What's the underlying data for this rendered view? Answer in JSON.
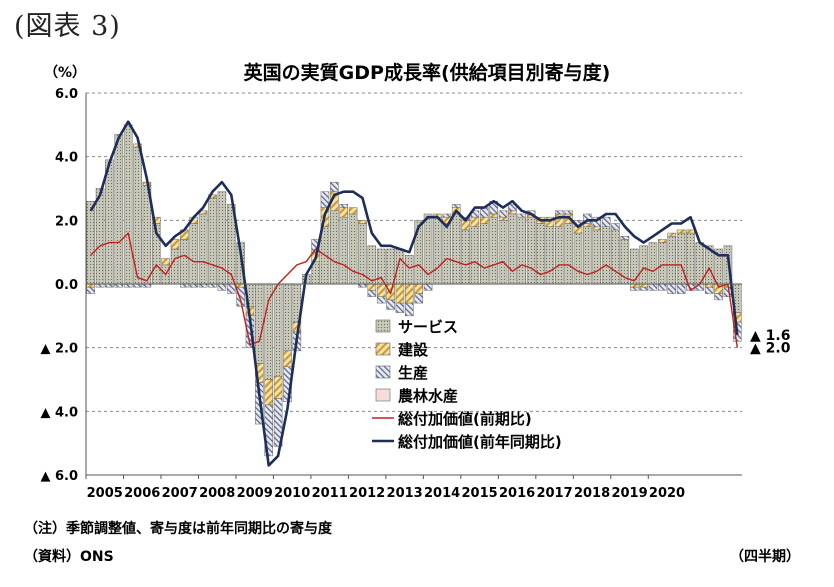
{
  "figure_label": "(図表 3)",
  "unit": "（%）",
  "note": "（注）季節調整値、寄与度は前年同期比の寄与度",
  "source": "（資料）ONS",
  "period": "（四半期）",
  "chart_data": {
    "type": "bar",
    "title": "英国の実質GDP成長率(供給項目別寄与度)",
    "ylim": [
      -6,
      6
    ],
    "y_ticks": [
      "6.0",
      "4.0",
      "2.0",
      "0.0",
      "▲ 2.0",
      "▲ 4.0",
      "▲ 6.0"
    ],
    "y_tick_values": [
      6,
      4,
      2,
      0,
      -2,
      -4,
      -6
    ],
    "x_year_labels": [
      "2005",
      "2006",
      "2007",
      "2008",
      "2009",
      "2010",
      "2011",
      "2012",
      "2013",
      "2014",
      "2015",
      "2016",
      "2017",
      "2018",
      "2019",
      "2020"
    ],
    "start_year": 2005,
    "quarters_per_year": 4,
    "grid": true,
    "colors": {
      "services": "#c8c8b8",
      "construction": "#e9c878",
      "production": "#b8c0d8",
      "agriculture": "#f4c8c8",
      "qoq": "#c0201e",
      "yoy": "#1e2d5a"
    },
    "series": [
      {
        "name": "サービス",
        "kind": "bar",
        "values": [
          2.6,
          3.0,
          3.9,
          4.7,
          5.0,
          4.3,
          3.1,
          1.9,
          0.6,
          1.1,
          1.4,
          1.9,
          2.2,
          2.7,
          2.9,
          2.5,
          1.3,
          -0.7,
          -2.5,
          -3.0,
          -2.9,
          -2.1,
          -1.2,
          0.3,
          0.7,
          1.8,
          2.3,
          2.1,
          2.2,
          1.9,
          1.2,
          1.1,
          1.1,
          1.1,
          0.9,
          2.0,
          2.2,
          2.1,
          1.9,
          2.2,
          1.7,
          1.8,
          1.9,
          2.1,
          2.0,
          2.2,
          2.1,
          2.1,
          1.9,
          1.8,
          1.8,
          1.9,
          1.6,
          1.8,
          1.7,
          1.8,
          1.7,
          1.4,
          1.1,
          1.2,
          1.3,
          1.3,
          1.5,
          1.6,
          1.6,
          1.3,
          1.2,
          1.1,
          1.2,
          -0.9
        ]
      },
      {
        "name": "建設",
        "kind": "bar",
        "values": [
          -0.1,
          0.0,
          0.0,
          0.0,
          0.0,
          0.1,
          0.1,
          0.2,
          0.2,
          0.3,
          0.3,
          0.2,
          0.1,
          0.1,
          0.0,
          0.0,
          -0.1,
          -0.3,
          -0.6,
          -0.8,
          -0.7,
          -0.5,
          -0.3,
          0.0,
          0.3,
          0.6,
          0.6,
          0.3,
          0.2,
          0.1,
          -0.2,
          -0.4,
          -0.5,
          -0.6,
          -0.6,
          -0.3,
          0.0,
          0.1,
          0.2,
          0.2,
          0.3,
          0.3,
          0.2,
          0.1,
          0.1,
          0.1,
          0.0,
          0.1,
          0.2,
          0.3,
          0.4,
          0.3,
          0.2,
          0.1,
          0.1,
          0.0,
          0.0,
          0.0,
          -0.1,
          -0.1,
          0.0,
          0.1,
          0.1,
          0.1,
          0.1,
          0.0,
          -0.1,
          -0.3,
          -0.1,
          -0.3
        ]
      },
      {
        "name": "生産",
        "kind": "bar",
        "values": [
          -0.2,
          -0.1,
          -0.1,
          -0.1,
          -0.1,
          -0.1,
          -0.1,
          0.0,
          0.0,
          0.0,
          -0.1,
          -0.1,
          -0.1,
          -0.1,
          -0.2,
          -0.3,
          -0.6,
          -1.0,
          -1.3,
          -1.6,
          -1.5,
          -1.1,
          -0.6,
          0.0,
          0.4,
          0.5,
          0.3,
          0.1,
          0.0,
          -0.1,
          -0.2,
          -0.2,
          -0.3,
          -0.3,
          -0.4,
          -0.3,
          -0.2,
          0.0,
          0.1,
          0.1,
          0.1,
          0.2,
          0.3,
          0.4,
          0.2,
          0.2,
          0.1,
          0.1,
          0.0,
          0.0,
          0.1,
          0.1,
          0.2,
          0.3,
          0.3,
          0.3,
          0.2,
          0.1,
          -0.1,
          -0.1,
          -0.2,
          -0.2,
          -0.3,
          -0.3,
          -0.2,
          -0.2,
          -0.2,
          -0.2,
          -0.3,
          -0.6
        ]
      },
      {
        "name": "農林水産",
        "kind": "bar",
        "values": [
          0.0,
          0.0,
          0.0,
          0.0,
          0.0,
          0.0,
          0.0,
          0.0,
          0.0,
          0.0,
          0.0,
          0.0,
          0.0,
          0.0,
          0.0,
          0.0,
          0.0,
          0.0,
          0.0,
          0.0,
          0.0,
          0.0,
          0.0,
          0.0,
          0.0,
          0.0,
          0.0,
          0.0,
          0.0,
          0.0,
          0.0,
          0.0,
          0.0,
          0.0,
          0.0,
          0.0,
          0.0,
          0.0,
          0.0,
          0.0,
          0.0,
          0.0,
          0.0,
          0.0,
          0.0,
          0.0,
          0.0,
          0.0,
          0.0,
          0.0,
          0.0,
          0.0,
          0.0,
          0.0,
          0.0,
          0.0,
          0.0,
          0.0,
          0.0,
          0.0,
          0.0,
          0.0,
          0.0,
          0.0,
          0.0,
          0.0,
          0.0,
          0.0,
          0.0,
          0.0
        ]
      },
      {
        "name": "総付加価値(前期比)",
        "kind": "line",
        "values": [
          0.9,
          1.2,
          1.3,
          1.3,
          1.6,
          0.2,
          0.1,
          0.6,
          0.3,
          0.8,
          0.9,
          0.7,
          0.7,
          0.6,
          0.5,
          0.3,
          -0.5,
          -1.9,
          -1.8,
          -0.5,
          0.0,
          0.3,
          0.6,
          0.7,
          1.1,
          0.9,
          0.7,
          0.6,
          0.4,
          0.3,
          0.1,
          0.2,
          -0.3,
          0.8,
          0.5,
          0.6,
          0.3,
          0.5,
          0.8,
          0.7,
          0.6,
          0.7,
          0.5,
          0.6,
          0.7,
          0.4,
          0.6,
          0.5,
          0.3,
          0.4,
          0.6,
          0.6,
          0.4,
          0.3,
          0.4,
          0.6,
          0.4,
          0.2,
          0.1,
          0.5,
          0.4,
          0.6,
          0.6,
          0.6,
          -0.2,
          0.0,
          0.5,
          -0.1,
          0.0,
          -2.0
        ],
        "end_label": "▲ 2.0"
      },
      {
        "name": "総付加価値(前年同期比)",
        "kind": "line",
        "values": [
          2.3,
          2.8,
          3.8,
          4.6,
          5.1,
          4.6,
          3.3,
          1.6,
          1.2,
          1.5,
          1.7,
          2.1,
          2.4,
          2.9,
          3.2,
          2.8,
          1.0,
          -1.1,
          -3.5,
          -5.7,
          -5.4,
          -3.9,
          -1.7,
          0.3,
          0.8,
          2.2,
          2.8,
          2.9,
          2.9,
          2.7,
          1.6,
          1.2,
          1.2,
          1.1,
          1.0,
          1.8,
          2.1,
          2.1,
          1.8,
          2.3,
          2.0,
          2.4,
          2.4,
          2.6,
          2.4,
          2.6,
          2.3,
          2.2,
          2.0,
          2.0,
          2.1,
          2.1,
          1.8,
          2.0,
          2.0,
          2.2,
          2.2,
          1.8,
          1.5,
          1.3,
          1.5,
          1.7,
          1.9,
          1.9,
          2.1,
          1.3,
          1.1,
          0.9,
          0.9,
          -1.6
        ],
        "end_label": "▲ 1.6"
      }
    ],
    "legend_position": "center-bottom"
  }
}
